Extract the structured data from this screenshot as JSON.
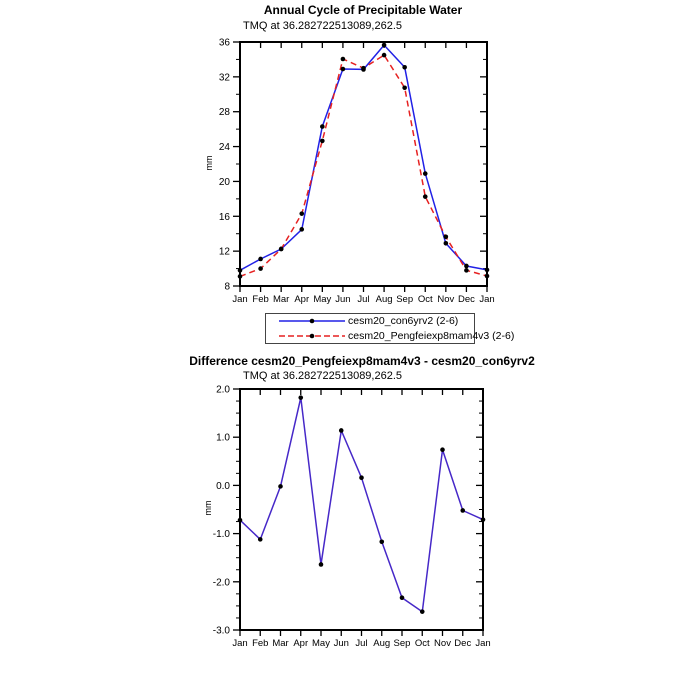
{
  "chart_data": [
    {
      "type": "line",
      "title": "Annual Cycle of Precipitable Water",
      "subtitle": "TMQ at 36.282722513089,262.5",
      "ylabel": "mm",
      "x": [
        "Jan",
        "Feb",
        "Mar",
        "Apr",
        "May",
        "Jun",
        "Jul",
        "Aug",
        "Sep",
        "Oct",
        "Nov",
        "Dec",
        "Jan"
      ],
      "ylim": [
        8,
        36
      ],
      "ytick_step": 4,
      "ytick_minor_step": 2,
      "ytick_labels": [
        "8",
        "12",
        "16",
        "20",
        "24",
        "28",
        "32",
        "36"
      ],
      "grid": false,
      "legend_position": "below-plot",
      "marker": {
        "shape": "circle",
        "color": "#000000"
      },
      "series": [
        {
          "name": "cesm20_con6yrv2 (2-6)",
          "color": "#2121E6",
          "line_style": "solid",
          "values": [
            9.8,
            11.1,
            12.25,
            14.5,
            26.3,
            32.9,
            32.85,
            35.65,
            33.1,
            20.9,
            12.9,
            10.3,
            9.85
          ]
        },
        {
          "name": "cesm20_Pengfeiexp8mam4v3 (2-6)",
          "color": "#E62121",
          "line_style": "dashed",
          "values": [
            9.1,
            10.0,
            12.25,
            16.3,
            24.65,
            34.05,
            33.0,
            34.5,
            30.75,
            18.25,
            13.65,
            9.8,
            9.15
          ]
        }
      ]
    },
    {
      "type": "line",
      "title": "Difference cesm20_Pengfeiexp8mam4v3 - cesm20_con6yrv2",
      "subtitle": "TMQ at 36.282722513089,262.5",
      "ylabel": "mm",
      "x": [
        "Jan",
        "Feb",
        "Mar",
        "Apr",
        "May",
        "Jun",
        "Jul",
        "Aug",
        "Sep",
        "Oct",
        "Nov",
        "Dec",
        "Jan"
      ],
      "ylim": [
        -3,
        2
      ],
      "ytick_step": 1,
      "ytick_minor_step": 0.25,
      "ytick_labels": [
        "-3.0",
        "-2.0",
        "-1.0",
        "0.0",
        "1.0",
        "2.0"
      ],
      "grid": false,
      "legend_position": "none",
      "marker": {
        "shape": "circle",
        "color": "#000000"
      },
      "series": [
        {
          "name": "difference",
          "color": "#4628C8",
          "line_style": "solid",
          "values": [
            -0.72,
            -1.12,
            -0.02,
            1.82,
            -1.64,
            1.14,
            0.16,
            -1.17,
            -2.33,
            -2.62,
            0.74,
            -0.52,
            -0.71
          ]
        }
      ]
    }
  ]
}
